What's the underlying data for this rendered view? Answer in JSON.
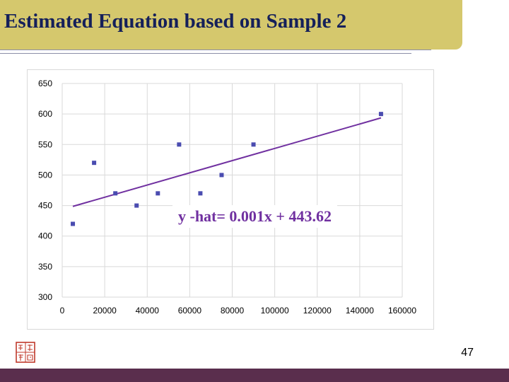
{
  "slide": {
    "title": "Estimated Equation based on Sample 2",
    "page_number": "47",
    "equation": "y -hat= 0.001x + 443.62"
  },
  "colors": {
    "title_band": "#d5c86d",
    "title_text": "#15205a",
    "bottom_band": "#5a2e4d",
    "points": "#4a4cb0",
    "trendline": "#7030a0",
    "seal": "#c0392b"
  },
  "icons": {
    "seal": "red-seal-logo"
  },
  "chart_data": {
    "type": "scatter",
    "title": "",
    "xlabel": "",
    "ylabel": "",
    "xlim": [
      0,
      160000
    ],
    "ylim": [
      300,
      650
    ],
    "x_ticks": [
      0,
      20000,
      40000,
      60000,
      80000,
      100000,
      120000,
      140000,
      160000
    ],
    "y_ticks": [
      300,
      350,
      400,
      450,
      500,
      550,
      600,
      650
    ],
    "grid": true,
    "legend": "none",
    "series": [
      {
        "x": [
          5000,
          15000,
          25000,
          35000,
          45000,
          55000,
          65000,
          75000,
          90000,
          150000
        ],
        "y": [
          420,
          520,
          470,
          450,
          470,
          550,
          470,
          500,
          550,
          600
        ]
      }
    ],
    "trendline": {
      "type": "linear",
      "slope": 0.001,
      "intercept": 443.62,
      "x_range": [
        5000,
        150000
      ],
      "label": "y -hat= 0.001x + 443.62"
    }
  }
}
